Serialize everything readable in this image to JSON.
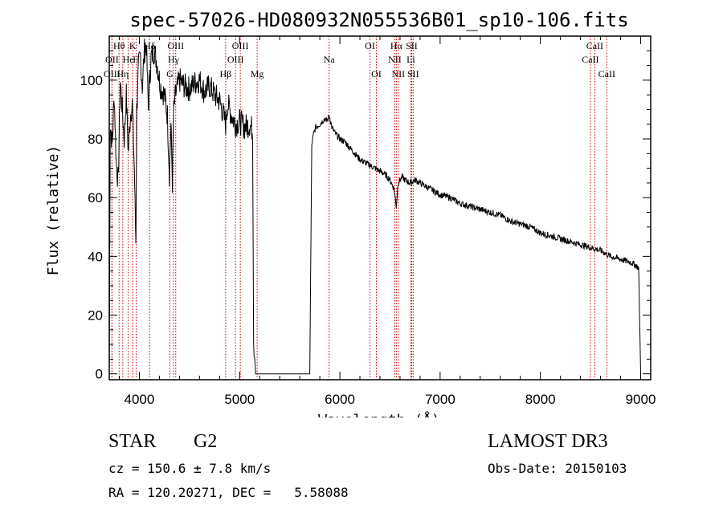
{
  "chart_data": {
    "type": "line",
    "title": "spec-57026-HD080932N055536B01_sp10-106.fits",
    "xlabel": "Wavelength (Å)",
    "ylabel": "Flux (relative)",
    "xlim": [
      3700,
      9100
    ],
    "ylim": [
      -2,
      115
    ],
    "xticks": [
      4000,
      5000,
      6000,
      7000,
      8000,
      9000
    ],
    "yticks": [
      0,
      20,
      40,
      60,
      80,
      100
    ],
    "grid": false,
    "series": [
      {
        "name": "flux",
        "x": [
          3700,
          3710,
          3730,
          3750,
          3770,
          3790,
          3810,
          3830,
          3850,
          3870,
          3890,
          3910,
          3930,
          3950,
          3965,
          3975,
          3990,
          4010,
          4030,
          4050,
          4070,
          4090,
          4101,
          4120,
          4150,
          4180,
          4210,
          4250,
          4280,
          4300,
          4315,
          4330,
          4340,
          4360,
          4400,
          4450,
          4500,
          4550,
          4600,
          4650,
          4700,
          4750,
          4800,
          4840,
          4861,
          4880,
          4920,
          4960,
          5000,
          5050,
          5100,
          5130,
          5140,
          5160,
          5700,
          5720,
          5740,
          5760,
          5800,
          5850,
          5870,
          5895,
          5920,
          5950,
          6000,
          6050,
          6100,
          6150,
          6200,
          6250,
          6300,
          6350,
          6400,
          6450,
          6500,
          6540,
          6563,
          6580,
          6620,
          6650,
          6700,
          6750,
          6800,
          6900,
          7000,
          7100,
          7200,
          7300,
          7400,
          7500,
          7600,
          7700,
          7800,
          7900,
          8000,
          8100,
          8200,
          8300,
          8400,
          8500,
          8600,
          8700,
          8800,
          8900,
          8950,
          8980,
          9000
        ],
        "y": [
          0,
          85,
          78,
          95,
          72,
          65,
          100,
          90,
          80,
          95,
          75,
          88,
          92,
          70,
          45,
          90,
          104,
          108,
          98,
          110,
          112,
          90,
          100,
          108,
          110,
          105,
          98,
          95,
          88,
          68,
          85,
          65,
          88,
          95,
          100,
          98,
          97,
          99,
          100,
          96,
          98,
          95,
          93,
          88,
          85,
          92,
          88,
          85,
          86,
          84,
          85,
          83,
          12,
          0,
          0,
          78,
          82,
          84,
          85,
          87,
          86,
          88,
          84,
          82,
          80,
          79,
          77,
          75,
          73,
          72,
          71,
          70,
          69,
          68,
          66,
          63,
          57,
          65,
          67,
          66,
          65,
          66,
          65,
          63,
          61,
          60,
          58,
          57,
          56,
          55,
          54,
          52,
          51,
          50,
          48,
          47,
          46,
          45,
          44,
          43,
          42,
          40,
          39,
          38,
          37,
          36,
          0
        ]
      }
    ],
    "emission_lines": [
      {
        "label": "Hθ",
        "wave": 3798,
        "row": 1
      },
      {
        "label": "OII",
        "wave": 3727,
        "row": 2
      },
      {
        "label": "OIII",
        "wave": 3727,
        "row": 3
      },
      {
        "label": "K",
        "wave": 3934,
        "row": 1
      },
      {
        "label": "He",
        "wave": 3889,
        "row": 2
      },
      {
        "label": "Hη",
        "wave": 3835,
        "row": 3
      },
      {
        "label": "Hδ",
        "wave": 4102,
        "row": 1
      },
      {
        "label": "H",
        "wave": 3969,
        "row": 2
      },
      {
        "label": "OIII",
        "wave": 4363,
        "row": 1
      },
      {
        "label": "Hγ",
        "wave": 4341,
        "row": 2
      },
      {
        "label": "G",
        "wave": 4305,
        "row": 3
      },
      {
        "label": "Hβ",
        "wave": 4861,
        "row": 3
      },
      {
        "label": "OIII",
        "wave": 5007,
        "row": 1
      },
      {
        "label": "OIII",
        "wave": 4959,
        "row": 2
      },
      {
        "label": "Mg",
        "wave": 5175,
        "row": 3
      },
      {
        "label": "Na",
        "wave": 5893,
        "row": 2
      },
      {
        "label": "OI",
        "wave": 6300,
        "row": 1
      },
      {
        "label": "OI",
        "wave": 6364,
        "row": 3
      },
      {
        "label": "Hα",
        "wave": 6563,
        "row": 1
      },
      {
        "label": "NII",
        "wave": 6548,
        "row": 2
      },
      {
        "label": "NII",
        "wave": 6583,
        "row": 3
      },
      {
        "label": "SII",
        "wave": 6716,
        "row": 1
      },
      {
        "label": "Li",
        "wave": 6708,
        "row": 2
      },
      {
        "label": "SII",
        "wave": 6731,
        "row": 3
      },
      {
        "label": "CaII",
        "wave": 8542,
        "row": 1
      },
      {
        "label": "CaII",
        "wave": 8498,
        "row": 2
      },
      {
        "label": "CaII",
        "wave": 8662,
        "row": 3
      }
    ]
  },
  "info": {
    "object_class": "STAR",
    "subclass": "G2",
    "survey": "LAMOST DR3",
    "redshift_line": "cz = 150.6 ± 7.8 km/s",
    "obs_date_line": "Obs-Date: 20150103",
    "coords_line": "RA = 120.20271, DEC =   5.58088"
  }
}
